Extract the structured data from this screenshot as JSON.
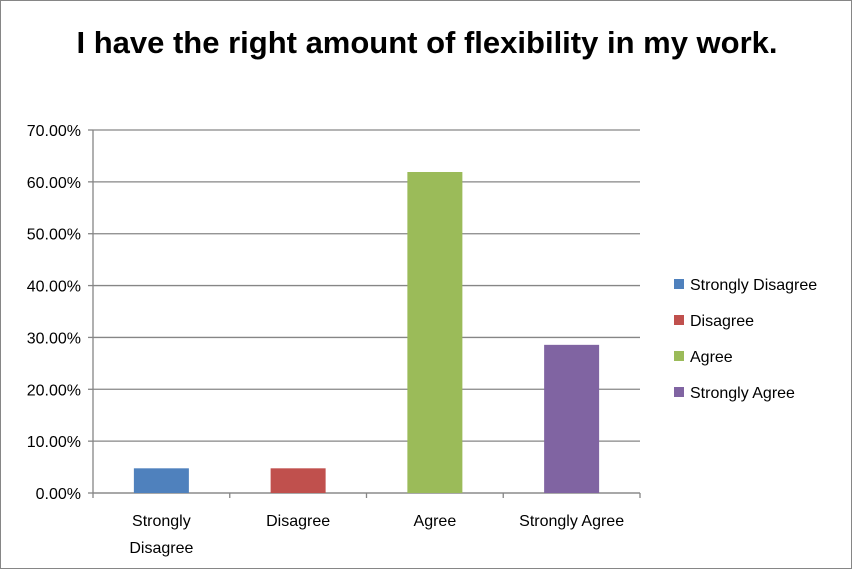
{
  "chart_data": {
    "type": "bar",
    "title": "I have the right amount of flexibility in my work.",
    "categories": [
      "Strongly Disagree",
      "Disagree",
      "Agree",
      "Strongly Agree"
    ],
    "category_tick_labels": [
      [
        "Strongly",
        "Disagree"
      ],
      [
        "Disagree"
      ],
      [
        "Agree"
      ],
      [
        "Strongly Agree"
      ]
    ],
    "values": [
      4.76,
      4.76,
      61.9,
      28.57
    ],
    "colors": [
      "#4F81BD",
      "#C0504D",
      "#9BBB59",
      "#8064A2"
    ],
    "ylim": [
      0,
      70
    ],
    "yticks": [
      0,
      10,
      20,
      30,
      40,
      50,
      60,
      70
    ],
    "ytick_labels": [
      "0.00%",
      "10.00%",
      "20.00%",
      "30.00%",
      "40.00%",
      "50.00%",
      "60.00%",
      "70.00%"
    ],
    "grid": true,
    "legend": {
      "position": "right",
      "entries": [
        "Strongly Disagree",
        "Disagree",
        "Agree",
        "Strongly Agree"
      ]
    },
    "xlabel": "",
    "ylabel": ""
  }
}
